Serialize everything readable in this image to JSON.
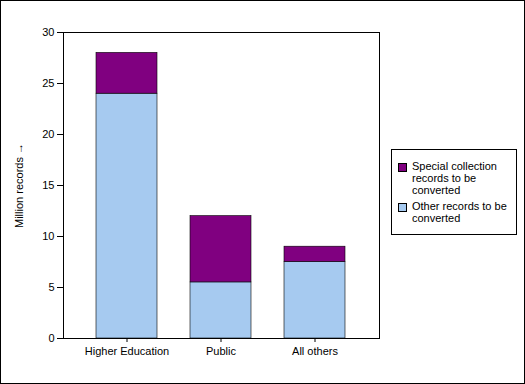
{
  "chart_data": {
    "type": "bar",
    "stacked": true,
    "legend": "right",
    "grid": false,
    "y_label": "Million records",
    "categories": [
      "Higher Education",
      "Public",
      "All others"
    ],
    "series": [
      {
        "name": "Special collection records to be converted",
        "color": "#800080",
        "values": [
          4,
          6.5,
          1.5
        ]
      },
      {
        "name": "Other records to be converted",
        "color": "#a6caf0",
        "values": [
          24,
          5.5,
          7.5
        ]
      }
    ],
    "ylim": [
      0,
      30
    ],
    "yticks": [
      0,
      5,
      10,
      15,
      20,
      25,
      30
    ]
  }
}
